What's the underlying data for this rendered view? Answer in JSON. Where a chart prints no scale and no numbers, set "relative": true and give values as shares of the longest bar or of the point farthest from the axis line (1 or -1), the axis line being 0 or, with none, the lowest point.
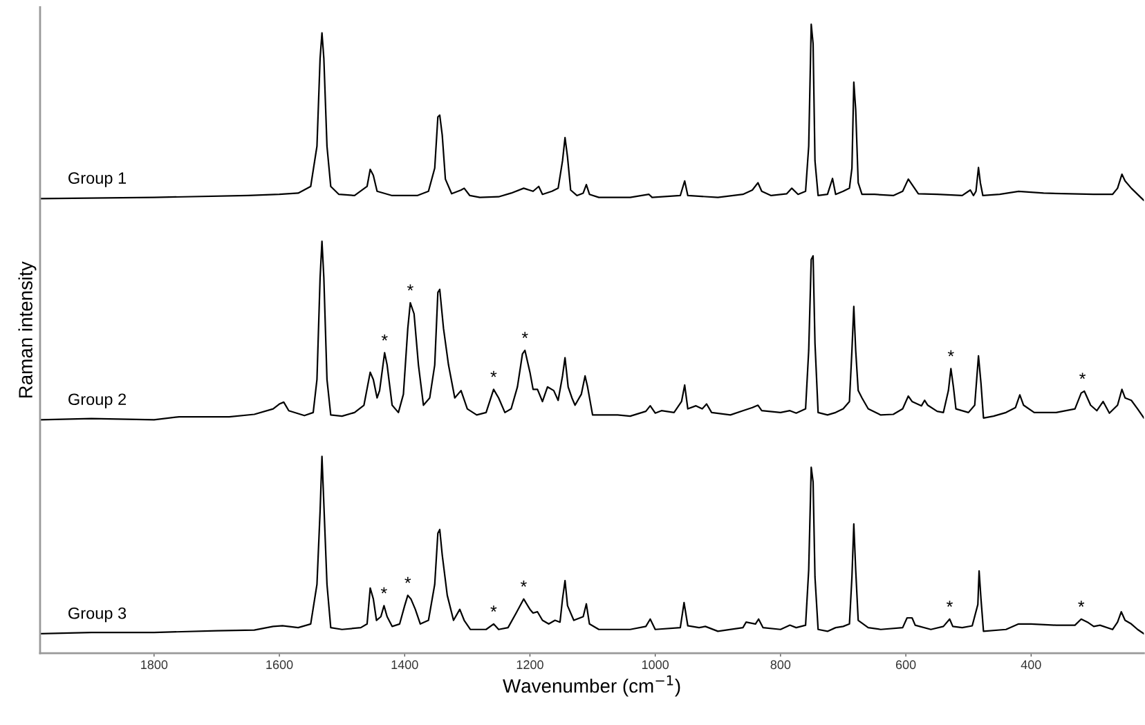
{
  "chart_data": {
    "type": "line",
    "relative": true,
    "xlabel": "Wavenumber (cm$^{−1}$)",
    "ylabel": "Raman intensity",
    "xlim": [
      1982,
      220
    ],
    "xticks": [
      400,
      600,
      800,
      1000,
      1200,
      1400,
      1600,
      1800
    ],
    "tick_labels": "x",
    "grid": false,
    "legend": false,
    "marker": "none",
    "line_style": "solid",
    "series": [
      {
        "name": "Group 1",
        "color": "#000000",
        "x": [
          1980,
          1800,
          1650,
          1600,
          1570,
          1550,
          1540,
          1535,
          1532,
          1529,
          1524,
          1518,
          1505,
          1480,
          1460,
          1455,
          1450,
          1444,
          1420,
          1380,
          1362,
          1352,
          1347,
          1344,
          1340,
          1335,
          1325,
          1310,
          1305,
          1296,
          1280,
          1250,
          1230,
          1210,
          1195,
          1186,
          1180,
          1165,
          1155,
          1148,
          1144,
          1140,
          1135,
          1125,
          1115,
          1110,
          1105,
          1090,
          1040,
          1010,
          1005,
          960,
          953,
          948,
          900,
          860,
          845,
          836,
          830,
          815,
          790,
          782,
          772,
          760,
          755,
          751,
          748,
          745,
          740,
          725,
          717,
          712,
          700,
          690,
          686,
          683,
          680,
          676,
          670,
          650,
          620,
          605,
          596,
          590,
          580,
          550,
          510,
          500,
          497,
          492,
          488,
          484,
          481,
          477,
          450,
          420,
          380,
          300,
          270,
          262,
          255,
          250,
          240,
          225,
          220
        ],
        "values": [
          0.714,
          0.716,
          0.719,
          0.721,
          0.723,
          0.734,
          0.8,
          0.944,
          0.986,
          0.944,
          0.8,
          0.734,
          0.721,
          0.719,
          0.734,
          0.762,
          0.752,
          0.726,
          0.719,
          0.719,
          0.726,
          0.764,
          0.848,
          0.851,
          0.818,
          0.746,
          0.722,
          0.728,
          0.731,
          0.719,
          0.716,
          0.717,
          0.723,
          0.731,
          0.726,
          0.734,
          0.721,
          0.726,
          0.731,
          0.776,
          0.814,
          0.782,
          0.728,
          0.719,
          0.723,
          0.737,
          0.721,
          0.716,
          0.716,
          0.721,
          0.716,
          0.719,
          0.743,
          0.719,
          0.716,
          0.721,
          0.728,
          0.74,
          0.726,
          0.719,
          0.722,
          0.731,
          0.721,
          0.726,
          0.8,
          1.0,
          0.968,
          0.776,
          0.719,
          0.721,
          0.747,
          0.721,
          0.726,
          0.731,
          0.764,
          0.905,
          0.86,
          0.74,
          0.721,
          0.721,
          0.719,
          0.726,
          0.746,
          0.737,
          0.722,
          0.721,
          0.719,
          0.726,
          0.728,
          0.719,
          0.726,
          0.765,
          0.74,
          0.719,
          0.721,
          0.726,
          0.723,
          0.721,
          0.721,
          0.731,
          0.754,
          0.743,
          0.731,
          0.716,
          0.711
        ]
      },
      {
        "name": "Group 2",
        "color": "#000000",
        "x": [
          1980,
          1900,
          1800,
          1760,
          1680,
          1640,
          1610,
          1600,
          1593,
          1585,
          1560,
          1546,
          1540,
          1535,
          1532,
          1529,
          1524,
          1518,
          1500,
          1480,
          1465,
          1455,
          1450,
          1444,
          1440,
          1432,
          1428,
          1420,
          1410,
          1402,
          1395,
          1391,
          1385,
          1378,
          1370,
          1360,
          1352,
          1347,
          1344,
          1338,
          1330,
          1320,
          1310,
          1300,
          1285,
          1270,
          1258,
          1250,
          1240,
          1230,
          1220,
          1212,
          1208,
          1200,
          1195,
          1188,
          1180,
          1172,
          1162,
          1155,
          1148,
          1144,
          1139,
          1133,
          1128,
          1118,
          1112,
          1108,
          1100,
          1060,
          1040,
          1015,
          1008,
          1000,
          990,
          970,
          958,
          953,
          948,
          935,
          925,
          918,
          910,
          880,
          860,
          845,
          836,
          830,
          800,
          785,
          775,
          760,
          755,
          751,
          748,
          745,
          740,
          725,
          712,
          700,
          690,
          686,
          683,
          680,
          676,
          670,
          660,
          640,
          620,
          605,
          596,
          590,
          575,
          570,
          565,
          550,
          540,
          532,
          528,
          524,
          520,
          500,
          490,
          484,
          480,
          476,
          460,
          440,
          425,
          418,
          412,
          395,
          360,
          330,
          320,
          315,
          305,
          295,
          285,
          275,
          262,
          255,
          250,
          240,
          230,
          220
        ],
        "values": [
          0.351,
          0.353,
          0.351,
          0.356,
          0.356,
          0.36,
          0.369,
          0.377,
          0.38,
          0.366,
          0.358,
          0.363,
          0.417,
          0.584,
          0.644,
          0.584,
          0.417,
          0.359,
          0.357,
          0.363,
          0.375,
          0.429,
          0.417,
          0.387,
          0.399,
          0.461,
          0.441,
          0.375,
          0.363,
          0.393,
          0.501,
          0.543,
          0.525,
          0.441,
          0.375,
          0.387,
          0.441,
          0.56,
          0.565,
          0.501,
          0.441,
          0.387,
          0.399,
          0.369,
          0.359,
          0.363,
          0.401,
          0.387,
          0.363,
          0.369,
          0.405,
          0.459,
          0.465,
          0.429,
          0.401,
          0.401,
          0.381,
          0.405,
          0.399,
          0.383,
          0.423,
          0.453,
          0.405,
          0.387,
          0.375,
          0.393,
          0.423,
          0.405,
          0.359,
          0.359,
          0.357,
          0.365,
          0.374,
          0.362,
          0.366,
          0.363,
          0.381,
          0.408,
          0.369,
          0.374,
          0.369,
          0.377,
          0.363,
          0.359,
          0.366,
          0.371,
          0.375,
          0.366,
          0.363,
          0.366,
          0.362,
          0.369,
          0.465,
          0.614,
          0.62,
          0.477,
          0.363,
          0.359,
          0.363,
          0.369,
          0.381,
          0.465,
          0.537,
          0.465,
          0.399,
          0.387,
          0.369,
          0.359,
          0.36,
          0.369,
          0.39,
          0.381,
          0.374,
          0.383,
          0.375,
          0.365,
          0.363,
          0.399,
          0.435,
          0.405,
          0.369,
          0.363,
          0.375,
          0.456,
          0.411,
          0.354,
          0.357,
          0.363,
          0.371,
          0.392,
          0.375,
          0.363,
          0.363,
          0.369,
          0.395,
          0.398,
          0.375,
          0.366,
          0.381,
          0.362,
          0.375,
          0.401,
          0.387,
          0.383,
          0.369,
          0.354
        ]
      },
      {
        "name": "Group 3",
        "color": "#000000",
        "x": [
          1980,
          1900,
          1800,
          1700,
          1640,
          1610,
          1595,
          1570,
          1550,
          1540,
          1535,
          1532,
          1529,
          1524,
          1518,
          1500,
          1470,
          1460,
          1455,
          1450,
          1445,
          1438,
          1433,
          1428,
          1420,
          1408,
          1400,
          1395,
          1390,
          1383,
          1375,
          1362,
          1352,
          1347,
          1344,
          1340,
          1332,
          1322,
          1312,
          1305,
          1295,
          1270,
          1258,
          1250,
          1235,
          1222,
          1210,
          1200,
          1195,
          1188,
          1180,
          1170,
          1160,
          1152,
          1148,
          1144,
          1140,
          1130,
          1115,
          1110,
          1105,
          1090,
          1040,
          1015,
          1008,
          1000,
          960,
          954,
          948,
          930,
          920,
          900,
          860,
          855,
          840,
          835,
          828,
          800,
          785,
          775,
          760,
          755,
          751,
          748,
          745,
          740,
          725,
          712,
          700,
          690,
          686,
          683,
          680,
          676,
          660,
          640,
          605,
          598,
          590,
          585,
          560,
          540,
          530,
          525,
          510,
          494,
          485,
          483,
          480,
          476,
          440,
          420,
          400,
          360,
          330,
          320,
          310,
          300,
          290,
          270,
          262,
          256,
          250,
          240,
          230,
          220
        ],
        "values": [
          0,
          0.002,
          0.002,
          0.005,
          0.006,
          0.012,
          0.013,
          0.01,
          0.016,
          0.081,
          0.201,
          0.291,
          0.213,
          0.081,
          0.01,
          0.007,
          0.01,
          0.016,
          0.075,
          0.057,
          0.022,
          0.028,
          0.046,
          0.028,
          0.012,
          0.016,
          0.046,
          0.063,
          0.057,
          0.04,
          0.016,
          0.022,
          0.081,
          0.165,
          0.171,
          0.129,
          0.063,
          0.022,
          0.04,
          0.022,
          0.007,
          0.007,
          0.016,
          0.007,
          0.01,
          0.034,
          0.057,
          0.04,
          0.034,
          0.036,
          0.022,
          0.016,
          0.022,
          0.019,
          0.057,
          0.087,
          0.046,
          0.022,
          0.028,
          0.049,
          0.016,
          0.007,
          0.007,
          0.012,
          0.024,
          0.007,
          0.01,
          0.051,
          0.013,
          0.01,
          0.012,
          0.004,
          0.01,
          0.019,
          0.016,
          0.024,
          0.01,
          0.007,
          0.014,
          0.01,
          0.014,
          0.105,
          0.273,
          0.249,
          0.093,
          0.007,
          0.004,
          0.01,
          0.012,
          0.016,
          0.093,
          0.18,
          0.105,
          0.022,
          0.01,
          0.007,
          0.01,
          0.026,
          0.026,
          0.014,
          0.007,
          0.012,
          0.024,
          0.012,
          0.01,
          0.013,
          0.048,
          0.103,
          0.057,
          0.004,
          0.007,
          0.016,
          0.016,
          0.014,
          0.014,
          0.024,
          0.019,
          0.012,
          0.014,
          0.007,
          0.019,
          0.036,
          0.022,
          0.016,
          0.007,
          0
        ]
      }
    ],
    "annotations": [
      {
        "text": "*",
        "x": 1432,
        "y": 0.461
      },
      {
        "text": "*",
        "x": 1391,
        "y": 0.543
      },
      {
        "text": "*",
        "x": 1258,
        "y": 0.401
      },
      {
        "text": "*",
        "x": 1208,
        "y": 0.465
      },
      {
        "text": "*",
        "x": 528,
        "y": 0.435
      },
      {
        "text": "*",
        "x": 318,
        "y": 0.398
      },
      {
        "text": "*",
        "x": 1433,
        "y": 0.046
      },
      {
        "text": "*",
        "x": 1395,
        "y": 0.063
      },
      {
        "text": "*",
        "x": 1258,
        "y": 0.016
      },
      {
        "text": "*",
        "x": 1210,
        "y": 0.057
      },
      {
        "text": "*",
        "x": 530,
        "y": 0.024
      },
      {
        "text": "*",
        "x": 320,
        "y": 0.024
      }
    ]
  }
}
